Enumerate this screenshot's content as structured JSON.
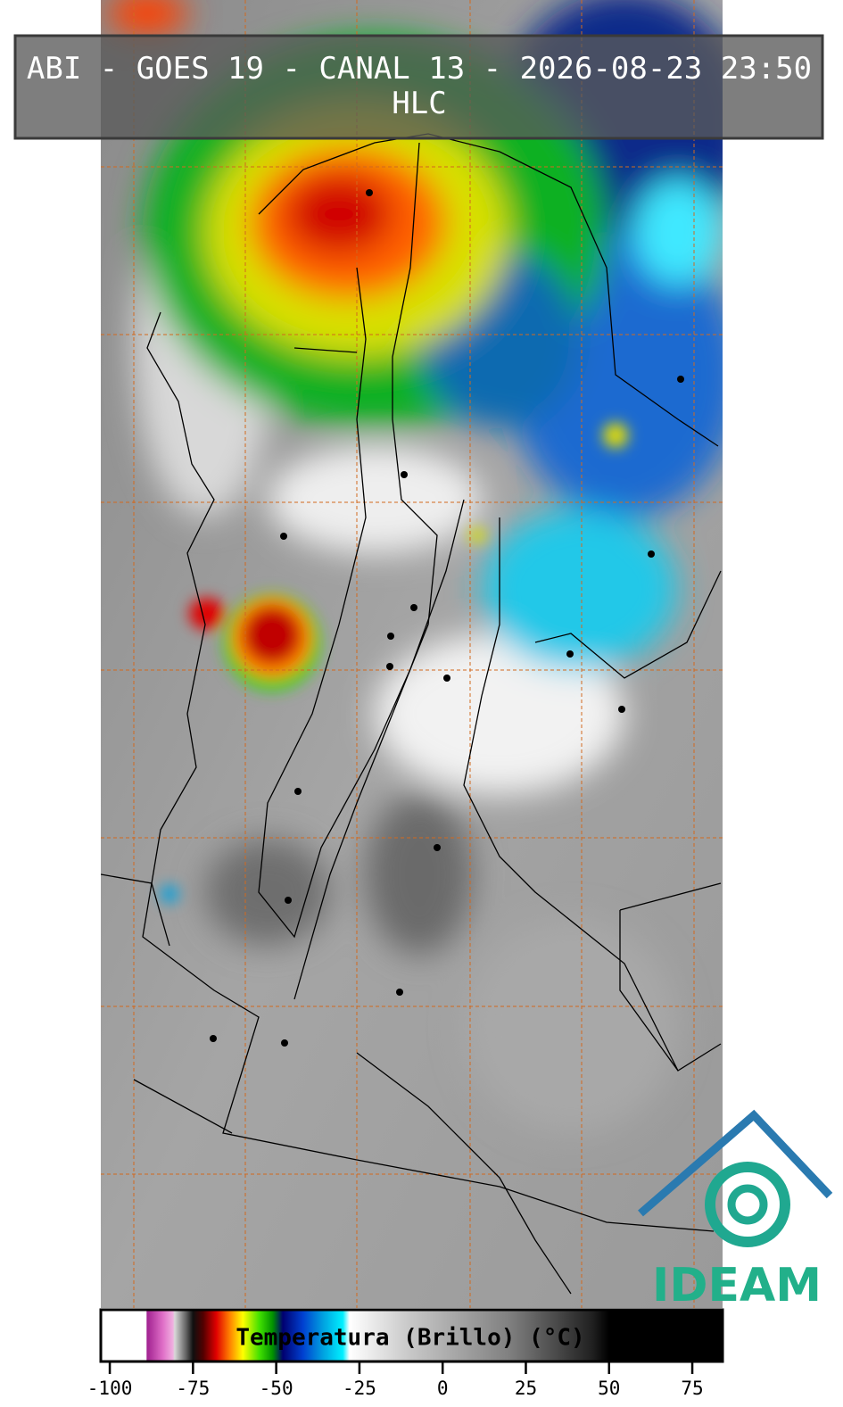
{
  "header": {
    "title": "ABI - GOES 19 - CANAL 13 - 2026-08-23 23:50",
    "subtitle": "HLC"
  },
  "colorbar": {
    "label": "Temperatura (Brillo) (°C)",
    "lim": [
      -102.7,
      84.1
    ],
    "ticks": [
      -100,
      -75,
      -50,
      -25,
      0,
      25,
      50,
      75
    ],
    "colorscale": [
      [
        -102.7,
        "#ffffff"
      ],
      [
        -89,
        "#ffffff"
      ],
      [
        -88.9,
        "#a0208f"
      ],
      [
        -84,
        "#e070c8"
      ],
      [
        -81,
        "#f0b0e0"
      ],
      [
        -80.5,
        "#d8d8d8"
      ],
      [
        -77,
        "#606060"
      ],
      [
        -75,
        "#101010"
      ],
      [
        -72,
        "#500000"
      ],
      [
        -68,
        "#e00000"
      ],
      [
        -64,
        "#ff8000"
      ],
      [
        -60,
        "#ffff00"
      ],
      [
        -55,
        "#40e000"
      ],
      [
        -51,
        "#009000"
      ],
      [
        -48,
        "#000070"
      ],
      [
        -42,
        "#0040d0"
      ],
      [
        -36,
        "#00a0e0"
      ],
      [
        -30,
        "#00f0ff"
      ],
      [
        -28,
        "#ffffff"
      ],
      [
        -10,
        "#c8c8c8"
      ],
      [
        20,
        "#808080"
      ],
      [
        45,
        "#202020"
      ],
      [
        50,
        "#000000"
      ],
      [
        84.1,
        "#000000"
      ]
    ]
  },
  "logo": {
    "text": "IDEAM"
  }
}
